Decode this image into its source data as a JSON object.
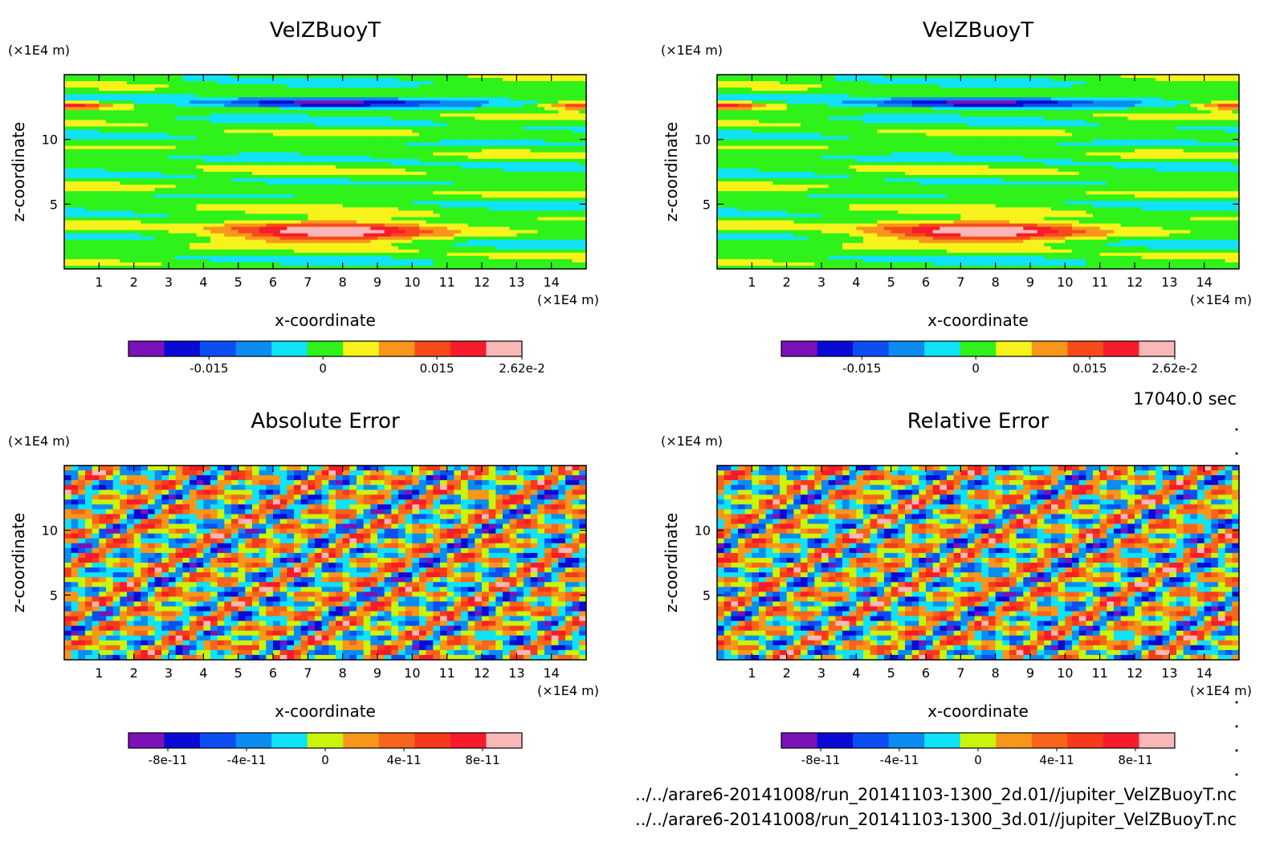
{
  "time_label": "17040.0 sec",
  "file_paths": [
    "../../arare6-20141008/run_20141103-1300_2d.01//jupiter_VelZBuoyT.nc",
    "../../arare6-20141008/run_20141103-1300_3d.01//jupiter_VelZBuoyT.nc"
  ],
  "chart_data": [
    {
      "type": "heatmap",
      "title": "VelZBuoyT",
      "xlabel": "x-coordinate",
      "ylabel": "z-coordinate",
      "x_unit": "(×1E4 m)",
      "y_unit": "(×1E4 m)",
      "xlim": [
        0,
        15
      ],
      "ylim": [
        0,
        15
      ],
      "xticks": [
        "1",
        "2",
        "3",
        "4",
        "5",
        "6",
        "7",
        "8",
        "9",
        "10",
        "11",
        "12",
        "13",
        "14"
      ],
      "yticks": [
        "5",
        "10"
      ],
      "colorbar": {
        "colors": [
          "#7a12b8",
          "#0a0ad6",
          "#0b4ff2",
          "#0b8cf2",
          "#10e2f7",
          "#2ef21a",
          "#f7f21b",
          "#f7961b",
          "#f74a1b",
          "#f71b2b",
          "#f9b7b7"
        ],
        "tick_labels": [
          "-0.015",
          "0",
          "0.015",
          "2.62e-2"
        ],
        "tick_values": [
          -0.015,
          0,
          0.015,
          0.0262
        ],
        "range": [
          -0.0256,
          0.0262
        ]
      }
    },
    {
      "type": "heatmap",
      "title": "VelZBuoyT",
      "xlabel": "x-coordinate",
      "ylabel": "z-coordinate",
      "x_unit": "(×1E4 m)",
      "y_unit": "(×1E4 m)",
      "xlim": [
        0,
        15
      ],
      "ylim": [
        0,
        15
      ],
      "xticks": [
        "1",
        "2",
        "3",
        "4",
        "5",
        "6",
        "7",
        "8",
        "9",
        "10",
        "11",
        "12",
        "13",
        "14"
      ],
      "yticks": [
        "5",
        "10"
      ],
      "colorbar": {
        "colors": [
          "#7a12b8",
          "#0a0ad6",
          "#0b4ff2",
          "#0b8cf2",
          "#10e2f7",
          "#2ef21a",
          "#f7f21b",
          "#f7961b",
          "#f74a1b",
          "#f71b2b",
          "#f9b7b7"
        ],
        "tick_labels": [
          "-0.015",
          "0",
          "0.015",
          "2.62e-2"
        ],
        "tick_values": [
          -0.015,
          0,
          0.015,
          0.0262
        ],
        "range": [
          -0.0256,
          0.0262
        ]
      }
    },
    {
      "type": "heatmap",
      "title": "Absolute Error",
      "xlabel": "x-coordinate",
      "ylabel": "z-coordinate",
      "x_unit": "(×1E4 m)",
      "y_unit": "(×1E4 m)",
      "xlim": [
        0,
        15
      ],
      "ylim": [
        0,
        15
      ],
      "xticks": [
        "1",
        "2",
        "3",
        "4",
        "5",
        "6",
        "7",
        "8",
        "9",
        "10",
        "11",
        "12",
        "13",
        "14"
      ],
      "yticks": [
        "5",
        "10"
      ],
      "colorbar": {
        "colors": [
          "#7a12b8",
          "#0a0ad6",
          "#0b4ff2",
          "#0b8cf2",
          "#10e2f7",
          "#c8f50a",
          "#f7961b",
          "#f7651b",
          "#f73a1b",
          "#f71b2b",
          "#f9b7b7"
        ],
        "tick_labels": [
          "-8e-11",
          "-4e-11",
          "0",
          "4e-11",
          "8e-11"
        ],
        "tick_values": [
          -8e-11,
          -4e-11,
          0,
          4e-11,
          8e-11
        ],
        "range": [
          -1e-10,
          1e-10
        ]
      }
    },
    {
      "type": "heatmap",
      "title": "Relative Error",
      "xlabel": "x-coordinate",
      "ylabel": "z-coordinate",
      "x_unit": "(×1E4 m)",
      "y_unit": "(×1E4 m)",
      "xlim": [
        0,
        15
      ],
      "ylim": [
        0,
        15
      ],
      "xticks": [
        "1",
        "2",
        "3",
        "4",
        "5",
        "6",
        "7",
        "8",
        "9",
        "10",
        "11",
        "12",
        "13",
        "14"
      ],
      "yticks": [
        "5",
        "10"
      ],
      "colorbar": {
        "colors": [
          "#7a12b8",
          "#0a0ad6",
          "#0b4ff2",
          "#0b8cf2",
          "#10e2f7",
          "#c8f50a",
          "#f7961b",
          "#f7651b",
          "#f73a1b",
          "#f71b2b",
          "#f9b7b7"
        ],
        "tick_labels": [
          "-8e-11",
          "-4e-11",
          "0",
          "4e-11",
          "8e-11"
        ],
        "tick_values": [
          -8e-11,
          -4e-11,
          0,
          4e-11,
          8e-11
        ],
        "range": [
          -1e-10,
          1e-10
        ]
      }
    }
  ]
}
